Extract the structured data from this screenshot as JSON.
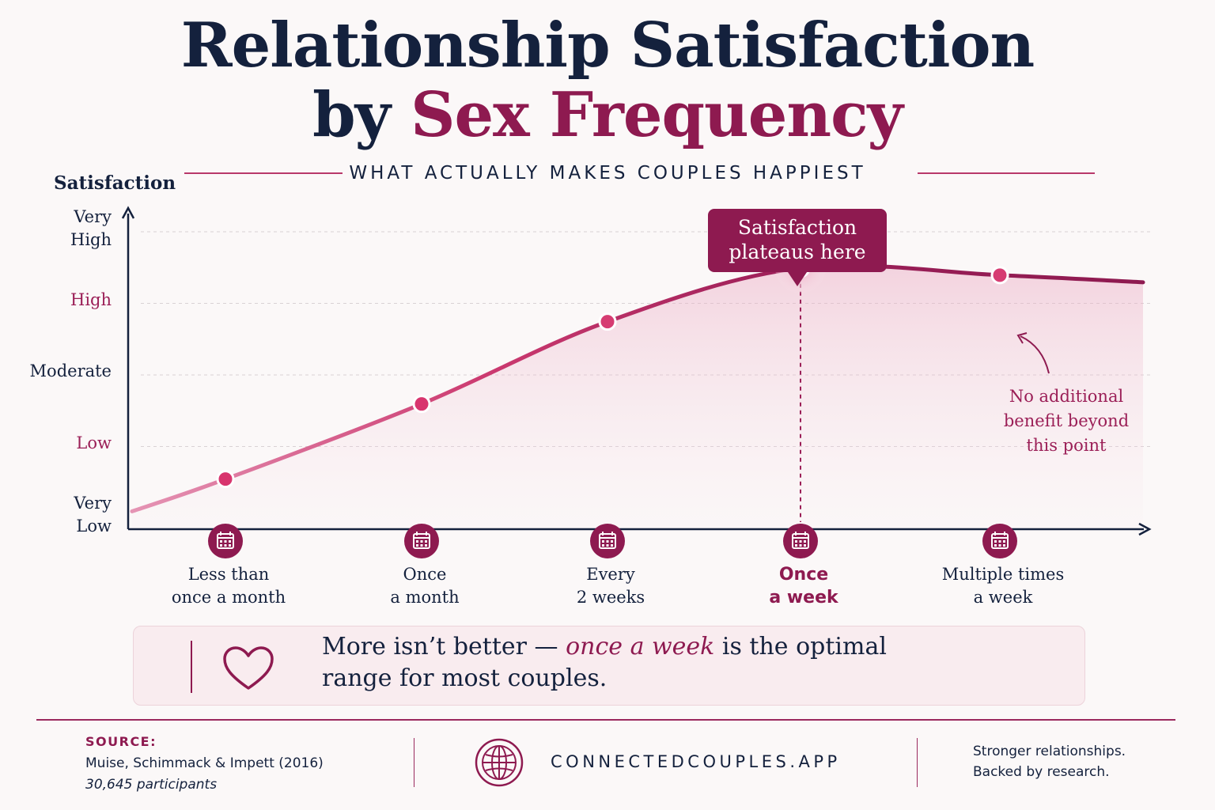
{
  "title": {
    "line1": "Relationship Satisfaction",
    "line2_prefix": "by ",
    "line2_accent": "Sex Frequency"
  },
  "subtitle": "WHAT ACTUALLY MAKES COUPLES HAPPIEST",
  "colors": {
    "navy": "#14213d",
    "accent": "#8e1a50",
    "pink": "#d63c72",
    "background": "#fbf8f8"
  },
  "chart_data": {
    "type": "area",
    "ylabel": "Satisfaction",
    "y_levels": [
      {
        "label_lines": [
          "Very",
          "Low"
        ],
        "value": 1,
        "highlight": false
      },
      {
        "label_lines": [
          "Low"
        ],
        "value": 2,
        "highlight": true
      },
      {
        "label_lines": [
          "Moderate"
        ],
        "value": 3,
        "highlight": false
      },
      {
        "label_lines": [
          "High"
        ],
        "value": 4,
        "highlight": true
      },
      {
        "label_lines": [
          "Very",
          "High"
        ],
        "value": 5,
        "highlight": false
      }
    ],
    "ylim": [
      0.8,
      5.1
    ],
    "categories": [
      {
        "lines": [
          "Less than",
          "once a month"
        ],
        "highlight": false
      },
      {
        "lines": [
          "Once",
          "a month"
        ],
        "highlight": false
      },
      {
        "lines": [
          "Every",
          "2 weeks"
        ],
        "highlight": false
      },
      {
        "lines": [
          "Once",
          "a week"
        ],
        "highlight": true
      },
      {
        "lines": [
          "Multiple times",
          "a week"
        ],
        "highlight": false
      }
    ],
    "values": [
      1.5,
      2.55,
      3.7,
      4.45,
      4.35
    ],
    "curve_start": 1.05,
    "curve_end": 4.25,
    "peak_index": 3,
    "grid": true,
    "annotations": {
      "peak_callout": [
        "Satisfaction",
        "plateaus here"
      ],
      "plateau_note": [
        "No additional",
        "benefit beyond",
        "this point"
      ]
    }
  },
  "insight": {
    "prefix": "More isn’t better — ",
    "emphasis": "once a week",
    "suffix": " is the optimal range for most couples.",
    "icon": "heart-icon"
  },
  "footer": {
    "source_label": "SOURCE:",
    "source_citation": "Muise, Schimmack & Impett (2016)",
    "participants": "30,645 participants",
    "site": "CONNECTEDCOUPLES.APP",
    "site_icon": "globe-icon",
    "tagline_line1": "Stronger relationships.",
    "tagline_line2": "Backed by research."
  }
}
